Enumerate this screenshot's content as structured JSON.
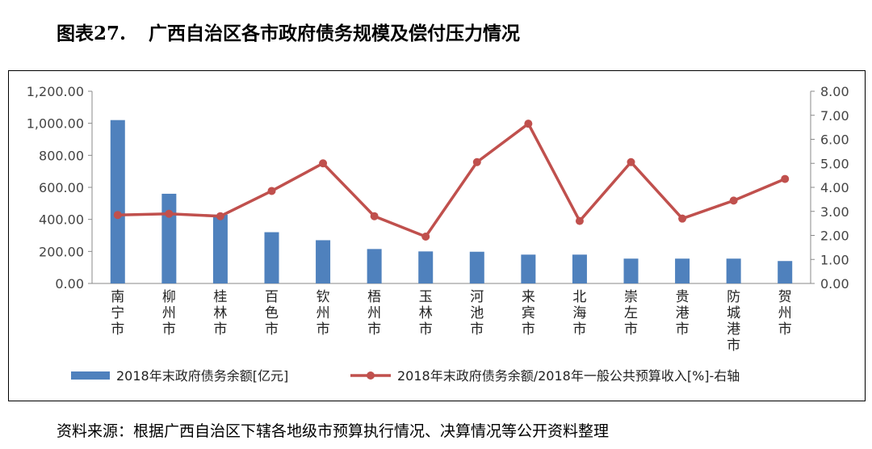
{
  "title": {
    "number": "图表27.",
    "text": "广西自治区各市政府债务规模及偿付压力情况"
  },
  "source": "资料来源：根据广西自治区下辖各地级市预算执行情况、决算情况等公开资料整理",
  "chart_data": {
    "type": "bar",
    "categories": [
      "南宁市",
      "柳州市",
      "桂林市",
      "百色市",
      "钦州市",
      "梧州市",
      "玉林市",
      "河池市",
      "来宾市",
      "北海市",
      "崇左市",
      "贵港市",
      "防城港市",
      "贺州市"
    ],
    "series": [
      {
        "name": "2018年末政府债务余额[亿元]",
        "type": "bar",
        "axis": "left",
        "color": "#4f81bd",
        "values": [
          1020,
          560,
          430,
          320,
          270,
          215,
          200,
          198,
          180,
          180,
          155,
          155,
          155,
          140
        ]
      },
      {
        "name": "2018年末政府债务余额/2018年一般公共预算收入[%]-右轴",
        "type": "line",
        "axis": "right",
        "color": "#c0504d",
        "values": [
          2.85,
          2.9,
          2.8,
          3.85,
          5.0,
          2.8,
          1.95,
          5.05,
          6.65,
          2.6,
          5.05,
          2.7,
          3.45,
          4.35
        ]
      }
    ],
    "y_left": {
      "min": 0,
      "max": 1200,
      "ticks": [
        "0.00",
        "200.00",
        "400.00",
        "600.00",
        "800.00",
        "1,000.00",
        "1,200.00"
      ]
    },
    "y_right": {
      "min": 0,
      "max": 8,
      "ticks": [
        "0.00",
        "1.00",
        "2.00",
        "3.00",
        "4.00",
        "5.00",
        "6.00",
        "7.00",
        "8.00"
      ]
    },
    "legend_position": "bottom",
    "grid": false
  }
}
